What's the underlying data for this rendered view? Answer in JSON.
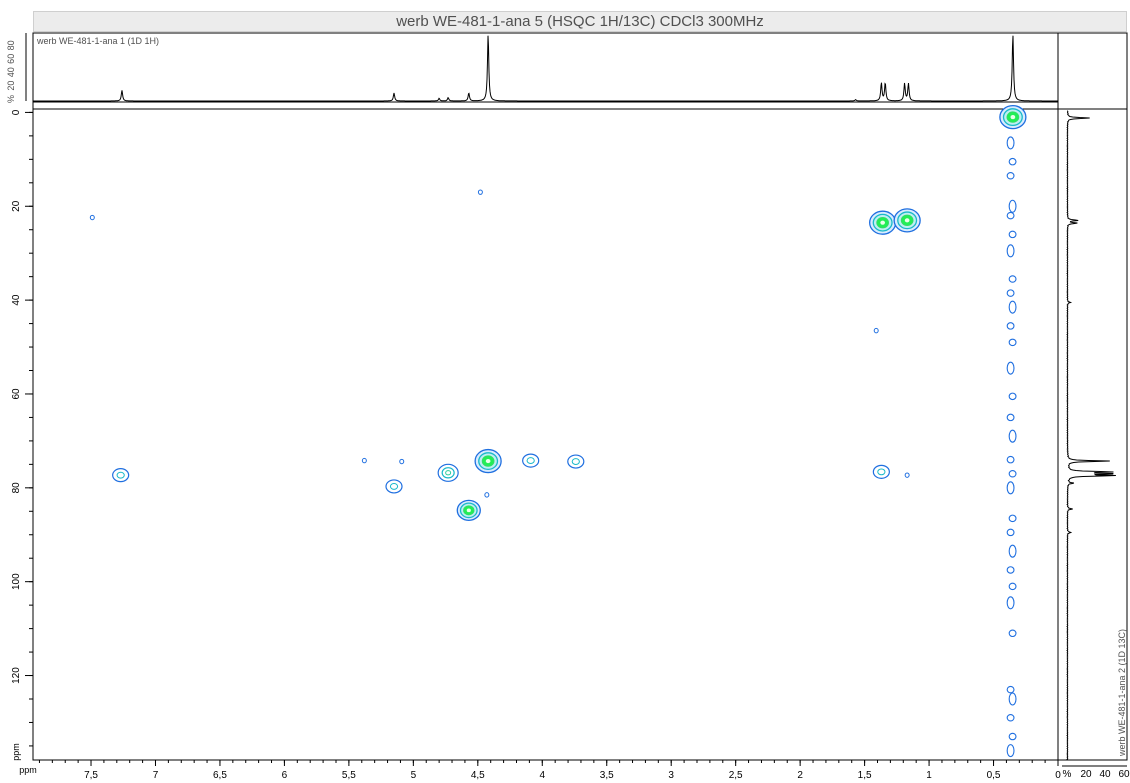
{
  "title": "werb WE-481-1-ana 5 (HSQC 1H/13C) CDCl3 300MHz",
  "colors": {
    "contour_outer": "#1f6fe0",
    "contour_mid": "#19b9c9",
    "contour_inner": "#22ee55",
    "axis": "#000000",
    "label": "#505050"
  },
  "chart_data": {
    "type": "heatmap",
    "title": "werb WE-481-1-ana 5 (HSQC 1H/13C) CDCl3 300MHz",
    "xlabel": "",
    "ylabel": "",
    "x_axis_reversed": true,
    "y_axis_reversed": true,
    "xlim": [
      7.95,
      0
    ],
    "ylim": [
      -0.3,
      138
    ],
    "x_ticks": [
      7.5,
      7,
      6.5,
      6,
      5.5,
      5,
      4.5,
      4,
      3.5,
      3,
      2.5,
      2,
      1.5,
      1,
      0.5,
      0
    ],
    "x_tick_labels": [
      "7,5",
      "7",
      "6,5",
      "6",
      "5,5",
      "5",
      "4,5",
      "4",
      "3,5",
      "3",
      "2,5",
      "2",
      "1,5",
      "1",
      "0,5",
      "0"
    ],
    "x_unit_label": "ppm",
    "y_ticks": [
      0,
      20,
      40,
      60,
      80,
      100,
      120
    ],
    "y_tick_labels": [
      "0",
      "20",
      "40",
      "60",
      "80",
      "100",
      "120"
    ],
    "y_unit_label": "ppm",
    "f2_projection": {
      "label": "werb WE-481-1-ana 1 (1D 1H)",
      "axis_ticks": [
        "%",
        "20",
        "40",
        "60",
        "80"
      ],
      "peaks": [
        {
          "x": 7.26,
          "h": 0.16
        },
        {
          "x": 5.15,
          "h": 0.12
        },
        {
          "x": 4.8,
          "h": 0.04
        },
        {
          "x": 4.73,
          "h": 0.05
        },
        {
          "x": 4.57,
          "h": 0.12
        },
        {
          "x": 4.42,
          "h": 1.0
        },
        {
          "x": 1.57,
          "h": 0.02
        },
        {
          "x": 1.37,
          "h": 0.27
        },
        {
          "x": 1.34,
          "h": 0.27
        },
        {
          "x": 1.19,
          "h": 0.26
        },
        {
          "x": 1.16,
          "h": 0.26
        },
        {
          "x": 0.35,
          "h": 1.0
        }
      ]
    },
    "f1_projection": {
      "label": "werb WE-481-1-ana 2 (1D 13C)",
      "axis_ticks": [
        "%",
        "20",
        "40",
        "60"
      ],
      "peaks": [
        {
          "y": 1.2,
          "h": 0.45
        },
        {
          "y": 23.0,
          "h": 0.22
        },
        {
          "y": 23.6,
          "h": 0.2
        },
        {
          "y": 40.5,
          "h": 0.06
        },
        {
          "y": 74.3,
          "h": 0.85
        },
        {
          "y": 76.6,
          "h": 0.85
        },
        {
          "y": 77.0,
          "h": 0.9
        },
        {
          "y": 77.4,
          "h": 0.9
        },
        {
          "y": 79.0,
          "h": 0.12
        },
        {
          "y": 84.5,
          "h": 0.1
        },
        {
          "y": 89.5,
          "h": 0.07
        }
      ]
    },
    "peaks": [
      {
        "x": 0.35,
        "y": 1.0,
        "level": 4
      },
      {
        "x": 1.36,
        "y": 23.5,
        "level": 4
      },
      {
        "x": 1.17,
        "y": 23.0,
        "level": 4
      },
      {
        "x": 4.42,
        "y": 74.3,
        "level": 4
      },
      {
        "x": 4.73,
        "y": 76.8,
        "level": 2
      },
      {
        "x": 4.57,
        "y": 84.8,
        "level": 3
      },
      {
        "x": 5.15,
        "y": 79.7,
        "level": 1
      },
      {
        "x": 4.09,
        "y": 74.2,
        "level": 1
      },
      {
        "x": 3.74,
        "y": 74.4,
        "level": 1
      },
      {
        "x": 7.27,
        "y": 77.3,
        "level": 1
      },
      {
        "x": 1.37,
        "y": 76.6,
        "level": 1
      },
      {
        "x": 1.17,
        "y": 77.3,
        "level": 0
      },
      {
        "x": 5.38,
        "y": 74.2,
        "level": 0
      },
      {
        "x": 5.09,
        "y": 74.4,
        "level": 0
      },
      {
        "x": 4.48,
        "y": 17.0,
        "level": 0
      },
      {
        "x": 7.49,
        "y": 22.4,
        "level": 0
      },
      {
        "x": 1.41,
        "y": 46.5,
        "level": 0
      },
      {
        "x": 4.43,
        "y": 81.5,
        "level": 0
      }
    ],
    "vertical_streak": {
      "x": 0.36,
      "blobs": [
        6.5,
        10.5,
        13.5,
        20,
        22,
        26,
        29.5,
        35.5,
        38.5,
        41.5,
        45.5,
        49,
        54.5,
        60.5,
        65,
        69,
        74,
        77,
        80,
        86.5,
        89.5,
        93.5,
        97.5,
        101,
        104.5,
        111,
        123,
        125,
        129,
        133,
        136
      ]
    }
  }
}
